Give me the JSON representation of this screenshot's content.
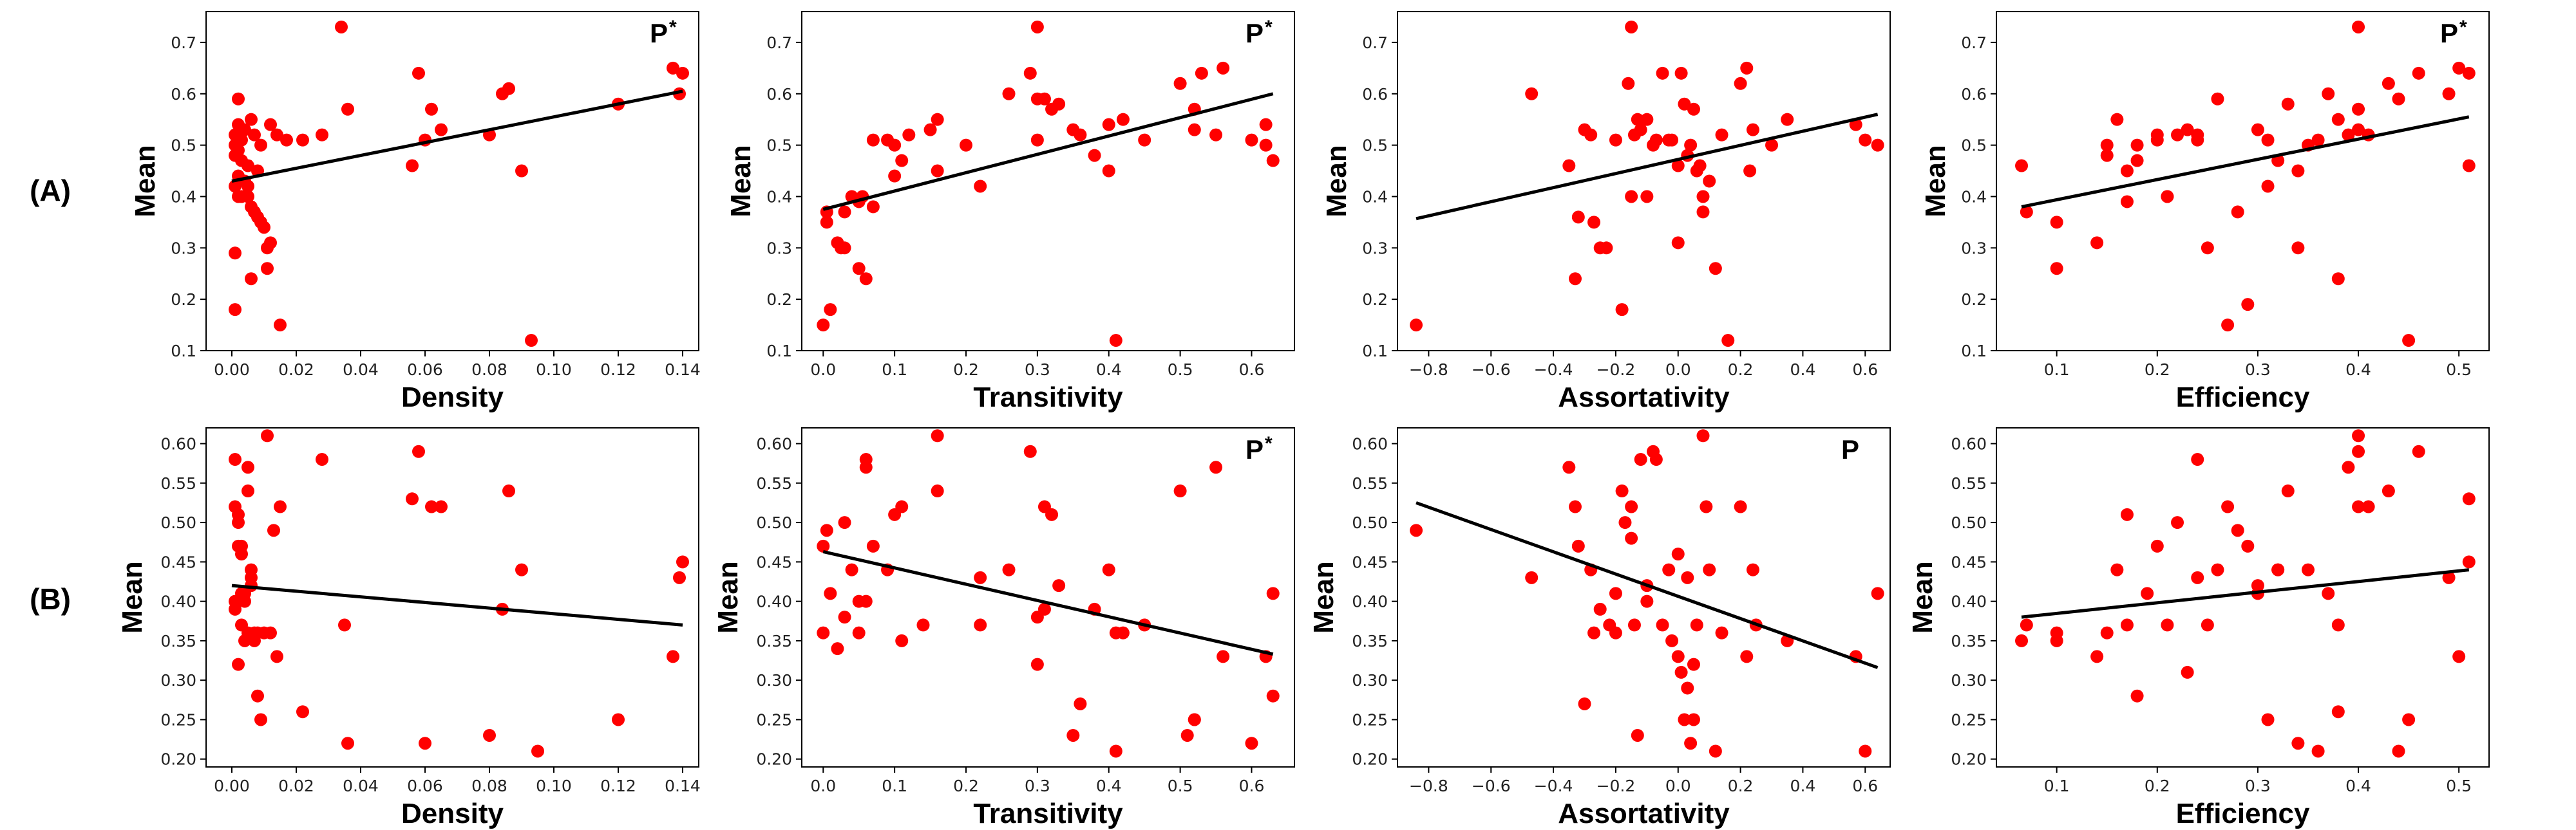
{
  "rows": [
    {
      "label": "(A)",
      "panel_indices": [
        0,
        1,
        2,
        3
      ]
    },
    {
      "label": "(B)",
      "panel_indices": [
        4,
        5,
        6,
        7
      ]
    }
  ],
  "style": {
    "point_color": "#ff0000",
    "line_color": "#000000",
    "axis_color": "#000000"
  },
  "chart_data": [
    {
      "type": "scatter",
      "row": "A",
      "xlabel": "Density",
      "ylabel": "Mean",
      "significance": "P",
      "significance_sup": "*",
      "xlim": [
        -0.008,
        0.145
      ],
      "ylim": [
        0.1,
        0.76
      ],
      "xticks": [
        0.0,
        0.02,
        0.04,
        0.06,
        0.08,
        0.1,
        0.12,
        0.14
      ],
      "xtick_labels": [
        "0.00",
        "0.02",
        "0.04",
        "0.06",
        "0.08",
        "0.10",
        "0.12",
        "0.14"
      ],
      "yticks": [
        0.1,
        0.2,
        0.3,
        0.4,
        0.5,
        0.6,
        0.7
      ],
      "ytick_labels": [
        "0.1",
        "0.2",
        "0.3",
        "0.4",
        "0.5",
        "0.6",
        "0.7"
      ],
      "fit": [
        [
          0.0,
          0.43
        ],
        [
          0.14,
          0.605
        ]
      ],
      "x": [
        0.034,
        0.002,
        0.001,
        0.003,
        0.001,
        0.002,
        0.001,
        0.003,
        0.002,
        0.001,
        0.002,
        0.005,
        0.006,
        0.007,
        0.008,
        0.009,
        0.01,
        0.011,
        0.012,
        0.015,
        0.017,
        0.004,
        0.006,
        0.002,
        0.007,
        0.009,
        0.005,
        0.008,
        0.004,
        0.005,
        0.003,
        0.001,
        0.012,
        0.014,
        0.006,
        0.011,
        0.001,
        0.022,
        0.028,
        0.036,
        0.056,
        0.058,
        0.06,
        0.062,
        0.065,
        0.08,
        0.084,
        0.086,
        0.09,
        0.093,
        0.12,
        0.137,
        0.139,
        0.14
      ],
      "y": [
        0.73,
        0.59,
        0.52,
        0.51,
        0.5,
        0.49,
        0.48,
        0.47,
        0.44,
        0.42,
        0.4,
        0.4,
        0.38,
        0.37,
        0.36,
        0.35,
        0.34,
        0.3,
        0.31,
        0.15,
        0.51,
        0.53,
        0.55,
        0.54,
        0.52,
        0.5,
        0.46,
        0.45,
        0.43,
        0.42,
        0.4,
        0.18,
        0.54,
        0.52,
        0.24,
        0.26,
        0.29,
        0.51,
        0.52,
        0.57,
        0.46,
        0.64,
        0.51,
        0.57,
        0.53,
        0.52,
        0.6,
        0.61,
        0.45,
        0.12,
        0.58,
        0.65,
        0.6,
        0.64
      ]
    },
    {
      "type": "scatter",
      "row": "A",
      "xlabel": "Transitivity",
      "ylabel": "Mean",
      "significance": "P",
      "significance_sup": "*",
      "xlim": [
        -0.03,
        0.66
      ],
      "ylim": [
        0.1,
        0.76
      ],
      "xticks": [
        0.0,
        0.1,
        0.2,
        0.3,
        0.4,
        0.5,
        0.6
      ],
      "xtick_labels": [
        "0.0",
        "0.1",
        "0.2",
        "0.3",
        "0.4",
        "0.5",
        "0.6"
      ],
      "yticks": [
        0.1,
        0.2,
        0.3,
        0.4,
        0.5,
        0.6,
        0.7
      ],
      "ytick_labels": [
        "0.1",
        "0.2",
        "0.3",
        "0.4",
        "0.5",
        "0.6",
        "0.7"
      ],
      "fit": [
        [
          0.0,
          0.375
        ],
        [
          0.63,
          0.6
        ]
      ],
      "x": [
        0.0,
        0.005,
        0.01,
        0.02,
        0.025,
        0.03,
        0.04,
        0.05,
        0.06,
        0.07,
        0.09,
        0.1,
        0.11,
        0.12,
        0.15,
        0.16,
        0.2,
        0.22,
        0.26,
        0.29,
        0.3,
        0.3,
        0.31,
        0.32,
        0.33,
        0.35,
        0.36,
        0.38,
        0.4,
        0.41,
        0.42,
        0.45,
        0.5,
        0.52,
        0.53,
        0.55,
        0.56,
        0.6,
        0.62,
        0.63,
        0.005,
        0.03,
        0.05,
        0.055,
        0.07,
        0.1,
        0.16,
        0.3,
        0.4,
        0.52,
        0.62
      ],
      "y": [
        0.15,
        0.35,
        0.18,
        0.31,
        0.3,
        0.37,
        0.4,
        0.26,
        0.24,
        0.51,
        0.51,
        0.44,
        0.47,
        0.52,
        0.53,
        0.55,
        0.5,
        0.42,
        0.6,
        0.64,
        0.73,
        0.51,
        0.59,
        0.57,
        0.58,
        0.53,
        0.52,
        0.48,
        0.45,
        0.12,
        0.55,
        0.51,
        0.62,
        0.57,
        0.64,
        0.52,
        0.65,
        0.51,
        0.54,
        0.47,
        0.37,
        0.3,
        0.39,
        0.4,
        0.38,
        0.5,
        0.45,
        0.59,
        0.54,
        0.53,
        0.5
      ]
    },
    {
      "type": "scatter",
      "row": "A",
      "xlabel": "Assortativity",
      "ylabel": "Mean",
      "significance": "",
      "significance_sup": "",
      "xlim": [
        -0.9,
        0.68
      ],
      "ylim": [
        0.1,
        0.76
      ],
      "xticks": [
        -0.8,
        -0.6,
        -0.4,
        -0.2,
        0.0,
        0.2,
        0.4,
        0.6
      ],
      "xtick_labels": [
        "−0.8",
        "−0.6",
        "−0.4",
        "−0.2",
        "0.0",
        "0.2",
        "0.4",
        "0.6"
      ],
      "yticks": [
        0.1,
        0.2,
        0.3,
        0.4,
        0.5,
        0.6,
        0.7
      ],
      "ytick_labels": [
        "0.1",
        "0.2",
        "0.3",
        "0.4",
        "0.5",
        "0.6",
        "0.7"
      ],
      "fit": [
        [
          -0.84,
          0.357
        ],
        [
          0.64,
          0.56
        ]
      ],
      "x": [
        -0.84,
        -0.47,
        -0.35,
        -0.33,
        -0.32,
        -0.3,
        -0.27,
        -0.25,
        -0.23,
        -0.2,
        -0.18,
        -0.16,
        -0.15,
        -0.14,
        -0.13,
        -0.12,
        -0.1,
        -0.08,
        -0.07,
        -0.05,
        -0.03,
        -0.02,
        0.0,
        0.01,
        0.02,
        0.03,
        0.04,
        0.05,
        0.06,
        0.07,
        0.08,
        0.1,
        0.12,
        0.14,
        0.16,
        0.2,
        0.22,
        0.24,
        0.3,
        0.35,
        0.57,
        0.6,
        0.64,
        -0.15,
        -0.28,
        0.08,
        -0.1,
        0.0,
        0.23
      ],
      "y": [
        0.15,
        0.6,
        0.46,
        0.24,
        0.36,
        0.53,
        0.35,
        0.3,
        0.3,
        0.51,
        0.18,
        0.62,
        0.73,
        0.52,
        0.55,
        0.53,
        0.4,
        0.5,
        0.51,
        0.64,
        0.51,
        0.51,
        0.46,
        0.64,
        0.58,
        0.48,
        0.5,
        0.57,
        0.45,
        0.46,
        0.37,
        0.43,
        0.26,
        0.52,
        0.12,
        0.62,
        0.65,
        0.53,
        0.5,
        0.55,
        0.54,
        0.51,
        0.5,
        0.4,
        0.52,
        0.4,
        0.55,
        0.31,
        0.45
      ]
    },
    {
      "type": "scatter",
      "row": "A",
      "xlabel": "Efficiency",
      "ylabel": "Mean",
      "significance": "P",
      "significance_sup": "*",
      "xlim": [
        0.04,
        0.53
      ],
      "ylim": [
        0.1,
        0.76
      ],
      "xticks": [
        0.1,
        0.2,
        0.3,
        0.4,
        0.5
      ],
      "xtick_labels": [
        "0.1",
        "0.2",
        "0.3",
        "0.4",
        "0.5"
      ],
      "yticks": [
        0.1,
        0.2,
        0.3,
        0.4,
        0.5,
        0.6,
        0.7
      ],
      "ytick_labels": [
        "0.1",
        "0.2",
        "0.3",
        "0.4",
        "0.5",
        "0.6",
        "0.7"
      ],
      "fit": [
        [
          0.065,
          0.38
        ],
        [
          0.51,
          0.555
        ]
      ],
      "x": [
        0.065,
        0.07,
        0.1,
        0.1,
        0.14,
        0.15,
        0.16,
        0.17,
        0.17,
        0.18,
        0.18,
        0.2,
        0.21,
        0.21,
        0.22,
        0.23,
        0.24,
        0.24,
        0.25,
        0.26,
        0.27,
        0.28,
        0.29,
        0.3,
        0.31,
        0.31,
        0.32,
        0.33,
        0.34,
        0.34,
        0.35,
        0.36,
        0.37,
        0.38,
        0.38,
        0.39,
        0.4,
        0.4,
        0.4,
        0.41,
        0.43,
        0.44,
        0.45,
        0.46,
        0.49,
        0.5,
        0.51,
        0.51,
        0.2,
        0.15
      ],
      "y": [
        0.46,
        0.37,
        0.26,
        0.35,
        0.31,
        0.48,
        0.55,
        0.39,
        0.45,
        0.5,
        0.47,
        0.51,
        0.4,
        0.4,
        0.52,
        0.53,
        0.51,
        0.52,
        0.3,
        0.59,
        0.15,
        0.37,
        0.19,
        0.53,
        0.42,
        0.51,
        0.47,
        0.58,
        0.45,
        0.3,
        0.5,
        0.51,
        0.6,
        0.24,
        0.55,
        0.52,
        0.73,
        0.53,
        0.57,
        0.52,
        0.62,
        0.59,
        0.12,
        0.64,
        0.6,
        0.65,
        0.46,
        0.64,
        0.52,
        0.5
      ]
    },
    {
      "type": "scatter",
      "row": "B",
      "xlabel": "Density",
      "ylabel": "Mean",
      "significance": "",
      "significance_sup": "",
      "xlim": [
        -0.008,
        0.145
      ],
      "ylim": [
        0.19,
        0.62
      ],
      "xticks": [
        0.0,
        0.02,
        0.04,
        0.06,
        0.08,
        0.1,
        0.12,
        0.14
      ],
      "xtick_labels": [
        "0.00",
        "0.02",
        "0.04",
        "0.06",
        "0.08",
        "0.10",
        "0.12",
        "0.14"
      ],
      "yticks": [
        0.2,
        0.25,
        0.3,
        0.35,
        0.4,
        0.45,
        0.5,
        0.55,
        0.6
      ],
      "ytick_labels": [
        "0.20",
        "0.25",
        "0.30",
        "0.35",
        "0.40",
        "0.45",
        "0.50",
        "0.55",
        "0.60"
      ],
      "fit": [
        [
          0.0,
          0.42
        ],
        [
          0.14,
          0.37
        ]
      ],
      "x": [
        0.001,
        0.001,
        0.002,
        0.002,
        0.003,
        0.003,
        0.004,
        0.004,
        0.005,
        0.005,
        0.006,
        0.006,
        0.007,
        0.007,
        0.008,
        0.008,
        0.009,
        0.01,
        0.011,
        0.012,
        0.013,
        0.014,
        0.015,
        0.001,
        0.002,
        0.003,
        0.004,
        0.005,
        0.006,
        0.002,
        0.003,
        0.001,
        0.022,
        0.028,
        0.035,
        0.036,
        0.056,
        0.058,
        0.06,
        0.062,
        0.065,
        0.08,
        0.084,
        0.086,
        0.09,
        0.095,
        0.12,
        0.137,
        0.139,
        0.14
      ],
      "y": [
        0.58,
        0.52,
        0.5,
        0.47,
        0.47,
        0.46,
        0.41,
        0.4,
        0.57,
        0.54,
        0.44,
        0.43,
        0.36,
        0.35,
        0.28,
        0.36,
        0.25,
        0.36,
        0.61,
        0.36,
        0.49,
        0.33,
        0.52,
        0.39,
        0.32,
        0.37,
        0.35,
        0.36,
        0.42,
        0.51,
        0.41,
        0.4,
        0.26,
        0.58,
        0.37,
        0.22,
        0.53,
        0.59,
        0.22,
        0.52,
        0.52,
        0.23,
        0.39,
        0.54,
        0.44,
        0.21,
        0.25,
        0.33,
        0.43,
        0.45
      ]
    },
    {
      "type": "scatter",
      "row": "B",
      "xlabel": "Transitivity",
      "ylabel": "Mean",
      "significance": "P",
      "significance_sup": "*",
      "xlim": [
        -0.03,
        0.66
      ],
      "ylim": [
        0.19,
        0.62
      ],
      "xticks": [
        0.0,
        0.1,
        0.2,
        0.3,
        0.4,
        0.5,
        0.6
      ],
      "xtick_labels": [
        "0.0",
        "0.1",
        "0.2",
        "0.3",
        "0.4",
        "0.5",
        "0.6"
      ],
      "yticks": [
        0.2,
        0.25,
        0.3,
        0.35,
        0.4,
        0.45,
        0.5,
        0.55,
        0.6
      ],
      "ytick_labels": [
        "0.20",
        "0.25",
        "0.30",
        "0.35",
        "0.40",
        "0.45",
        "0.50",
        "0.55",
        "0.60"
      ],
      "fit": [
        [
          0.0,
          0.463
        ],
        [
          0.63,
          0.333
        ]
      ],
      "x": [
        0.0,
        0.005,
        0.01,
        0.02,
        0.03,
        0.04,
        0.05,
        0.06,
        0.06,
        0.07,
        0.09,
        0.1,
        0.11,
        0.14,
        0.16,
        0.16,
        0.22,
        0.26,
        0.29,
        0.3,
        0.3,
        0.31,
        0.32,
        0.33,
        0.35,
        0.36,
        0.38,
        0.4,
        0.41,
        0.42,
        0.45,
        0.5,
        0.51,
        0.52,
        0.55,
        0.56,
        0.6,
        0.62,
        0.63,
        0.0,
        0.03,
        0.05,
        0.06,
        0.11,
        0.22,
        0.31,
        0.41,
        0.52,
        0.63
      ],
      "y": [
        0.36,
        0.49,
        0.41,
        0.34,
        0.5,
        0.44,
        0.36,
        0.57,
        0.58,
        0.47,
        0.44,
        0.51,
        0.52,
        0.37,
        0.54,
        0.61,
        0.43,
        0.44,
        0.59,
        0.32,
        0.38,
        0.52,
        0.51,
        0.42,
        0.23,
        0.27,
        0.39,
        0.44,
        0.21,
        0.36,
        0.37,
        0.54,
        0.23,
        0.25,
        0.57,
        0.33,
        0.22,
        0.33,
        0.41,
        0.47,
        0.38,
        0.4,
        0.4,
        0.35,
        0.37,
        0.39,
        0.36,
        0.25,
        0.28
      ]
    },
    {
      "type": "scatter",
      "row": "B",
      "xlabel": "Assortativity",
      "ylabel": "Mean",
      "significance": "P",
      "significance_sup": "",
      "xlim": [
        -0.9,
        0.68
      ],
      "ylim": [
        0.19,
        0.62
      ],
      "xticks": [
        -0.8,
        -0.6,
        -0.4,
        -0.2,
        0.0,
        0.2,
        0.4,
        0.6
      ],
      "xtick_labels": [
        "−0.8",
        "−0.6",
        "−0.4",
        "−0.2",
        "0.0",
        "0.2",
        "0.4",
        "0.6"
      ],
      "yticks": [
        0.2,
        0.25,
        0.3,
        0.35,
        0.4,
        0.45,
        0.5,
        0.55,
        0.6
      ],
      "ytick_labels": [
        "0.20",
        "0.25",
        "0.30",
        "0.35",
        "0.40",
        "0.45",
        "0.50",
        "0.55",
        "0.60"
      ],
      "fit": [
        [
          -0.84,
          0.525
        ],
        [
          0.64,
          0.316
        ]
      ],
      "x": [
        -0.84,
        -0.47,
        -0.35,
        -0.33,
        -0.32,
        -0.3,
        -0.28,
        -0.27,
        -0.25,
        -0.22,
        -0.2,
        -0.18,
        -0.17,
        -0.15,
        -0.14,
        -0.13,
        -0.12,
        -0.1,
        -0.08,
        -0.07,
        -0.05,
        -0.03,
        -0.02,
        0.0,
        0.01,
        0.02,
        0.03,
        0.04,
        0.05,
        0.06,
        0.08,
        0.1,
        0.12,
        0.14,
        0.2,
        0.22,
        0.24,
        0.25,
        0.35,
        0.57,
        0.6,
        0.64,
        -0.15,
        -0.2,
        0.05,
        0.0,
        -0.1,
        0.09,
        0.03
      ],
      "y": [
        0.49,
        0.43,
        0.57,
        0.52,
        0.47,
        0.27,
        0.44,
        0.36,
        0.39,
        0.37,
        0.41,
        0.54,
        0.5,
        0.52,
        0.37,
        0.23,
        0.58,
        0.42,
        0.59,
        0.58,
        0.37,
        0.44,
        0.35,
        0.33,
        0.31,
        0.25,
        0.29,
        0.22,
        0.25,
        0.37,
        0.61,
        0.44,
        0.21,
        0.36,
        0.52,
        0.33,
        0.44,
        0.37,
        0.35,
        0.33,
        0.21,
        0.41,
        0.48,
        0.36,
        0.32,
        0.46,
        0.4,
        0.52,
        0.43
      ]
    },
    {
      "type": "scatter",
      "row": "B",
      "xlabel": "Efficiency",
      "ylabel": "Mean",
      "significance": "",
      "significance_sup": "",
      "xlim": [
        0.04,
        0.53
      ],
      "ylim": [
        0.19,
        0.62
      ],
      "xticks": [
        0.1,
        0.2,
        0.3,
        0.4,
        0.5
      ],
      "xtick_labels": [
        "0.1",
        "0.2",
        "0.3",
        "0.4",
        "0.5"
      ],
      "yticks": [
        0.2,
        0.25,
        0.3,
        0.35,
        0.4,
        0.45,
        0.5,
        0.55,
        0.6
      ],
      "ytick_labels": [
        "0.20",
        "0.25",
        "0.30",
        "0.35",
        "0.40",
        "0.45",
        "0.50",
        "0.55",
        "0.60"
      ],
      "fit": [
        [
          0.065,
          0.38
        ],
        [
          0.51,
          0.44
        ]
      ],
      "x": [
        0.065,
        0.07,
        0.1,
        0.1,
        0.14,
        0.15,
        0.16,
        0.17,
        0.17,
        0.18,
        0.2,
        0.21,
        0.22,
        0.23,
        0.24,
        0.25,
        0.26,
        0.27,
        0.28,
        0.29,
        0.3,
        0.31,
        0.32,
        0.33,
        0.34,
        0.35,
        0.36,
        0.37,
        0.38,
        0.38,
        0.39,
        0.4,
        0.4,
        0.4,
        0.41,
        0.43,
        0.44,
        0.45,
        0.46,
        0.49,
        0.5,
        0.51,
        0.51,
        0.32,
        0.24,
        0.19,
        0.3
      ],
      "y": [
        0.35,
        0.37,
        0.36,
        0.35,
        0.33,
        0.36,
        0.44,
        0.37,
        0.51,
        0.28,
        0.47,
        0.37,
        0.5,
        0.31,
        0.58,
        0.37,
        0.44,
        0.52,
        0.49,
        0.47,
        0.41,
        0.25,
        0.44,
        0.54,
        0.22,
        0.44,
        0.21,
        0.41,
        0.26,
        0.37,
        0.57,
        0.61,
        0.59,
        0.52,
        0.52,
        0.54,
        0.21,
        0.25,
        0.59,
        0.43,
        0.33,
        0.53,
        0.45,
        0.44,
        0.43,
        0.41,
        0.42
      ]
    }
  ]
}
